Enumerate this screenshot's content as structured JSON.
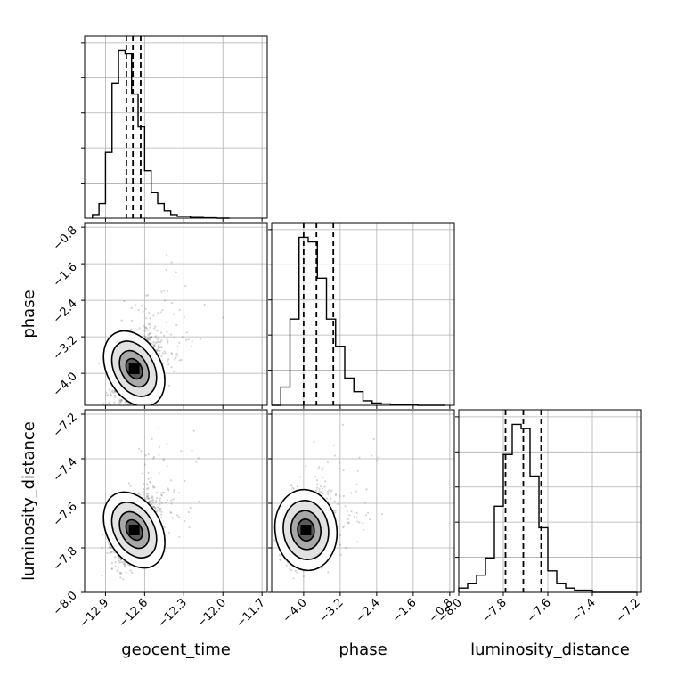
{
  "chart_data": {
    "type": "corner",
    "parameters": [
      "geocent_time",
      "phase",
      "luminosity_distance"
    ],
    "grid": true,
    "axes": {
      "geocent_time": {
        "label": "geocent_time",
        "range": [
          -13.06,
          -11.66
        ],
        "ticks": [
          -12.9,
          -12.6,
          -12.3,
          -12.0,
          -11.7
        ],
        "tick_labels": [
          "−12.9",
          "−12.6",
          "−12.3",
          "−12.0",
          "−11.7"
        ]
      },
      "phase": {
        "label": "phase",
        "range": [
          -4.7,
          -0.7
        ],
        "ticks": [
          -4.0,
          -3.2,
          -2.4,
          -1.6,
          -0.8
        ],
        "tick_labels": [
          "−4.0",
          "−3.2",
          "−2.4",
          "−1.6",
          "−0.8"
        ]
      },
      "luminosity_distance": {
        "label": "luminosity_distance",
        "range": [
          -8.0,
          -7.18
        ],
        "ticks": [
          -8.0,
          -7.8,
          -7.6,
          -7.4,
          -7.2
        ],
        "tick_labels": [
          "−8.0",
          "−7.8",
          "−7.6",
          "−7.4",
          "−7.2"
        ]
      }
    },
    "marginals": [
      {
        "param": "geocent_time",
        "bins": [
          -13.0,
          -12.95,
          -12.9,
          -12.85,
          -12.8,
          -12.75,
          -12.7,
          -12.65,
          -12.6,
          -12.55,
          -12.5,
          -12.45,
          -12.4,
          -12.35,
          -12.3,
          -12.25,
          -12.2,
          -12.15,
          -12.1,
          -12.05,
          -12.0,
          -11.95
        ],
        "counts": [
          1,
          4,
          18,
          37,
          46,
          45,
          34,
          25,
          13,
          7,
          4,
          2,
          1,
          0.5,
          0.5,
          0.2,
          0.2,
          0.1,
          0.1,
          0,
          0
        ],
        "quantiles": [
          -12.74,
          -12.69,
          -12.63
        ]
      },
      {
        "param": "phase",
        "bins": [
          -4.7,
          -4.5,
          -4.3,
          -4.1,
          -3.9,
          -3.7,
          -3.5,
          -3.3,
          -3.1,
          -2.9,
          -2.7,
          -2.5,
          -2.3,
          -2.1,
          -1.9,
          -1.7,
          -1.5,
          -1.3,
          -1.1,
          -0.9
        ],
        "counts": [
          0,
          4,
          19,
          37,
          36,
          28,
          19,
          13,
          6,
          3,
          1,
          0.5,
          0.3,
          0.2,
          0.1,
          0.1,
          0,
          0,
          0
        ],
        "quantiles": [
          -4.0,
          -3.72,
          -3.35
        ]
      },
      {
        "param": "luminosity_distance",
        "bins": [
          -8.0,
          -7.96,
          -7.92,
          -7.88,
          -7.84,
          -7.8,
          -7.76,
          -7.72,
          -7.68,
          -7.64,
          -7.6,
          -7.56,
          -7.52,
          -7.48,
          -7.44,
          -7.4,
          -7.36,
          -7.32,
          -7.28,
          -7.24,
          -7.2
        ],
        "counts": [
          1,
          2,
          4,
          8,
          20,
          32,
          39,
          38,
          27,
          15,
          5,
          2,
          1,
          0.5,
          0.5,
          0,
          0,
          0,
          0,
          0
        ],
        "quantiles": [
          -7.79,
          -7.71,
          -7.63
        ]
      }
    ],
    "joint": [
      {
        "x": "geocent_time",
        "y": "phase",
        "center": [
          -12.68,
          -3.9
        ],
        "spread": [
          0.08,
          0.34
        ],
        "rho": 0.45
      },
      {
        "x": "geocent_time",
        "y": "luminosity_distance",
        "center": [
          -12.68,
          -7.72
        ],
        "spread": [
          0.08,
          0.07
        ],
        "rho": 0.45
      },
      {
        "x": "phase",
        "y": "luminosity_distance",
        "center": [
          -3.95,
          -7.72
        ],
        "spread": [
          0.26,
          0.07
        ],
        "rho": 0.1
      }
    ]
  }
}
